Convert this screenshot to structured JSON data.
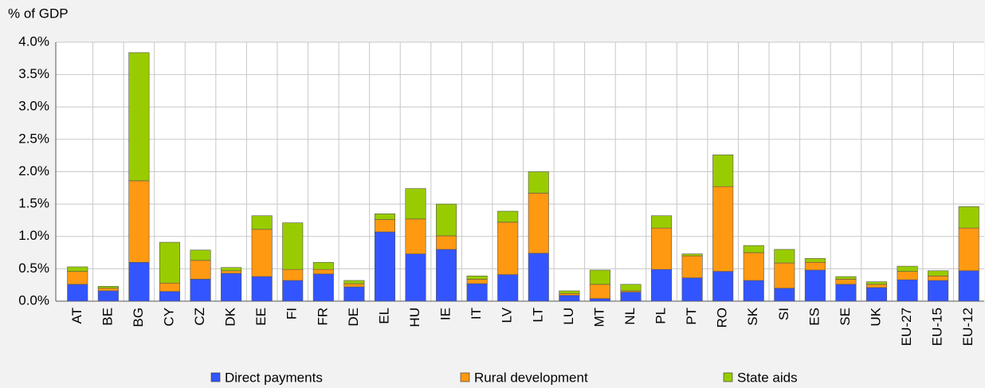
{
  "chart_data": {
    "type": "stacked_bar",
    "y_label": "% of GDP",
    "categories": [
      "AT",
      "BE",
      "BG",
      "CY",
      "CZ",
      "DK",
      "EE",
      "FI",
      "FR",
      "DE",
      "EL",
      "HU",
      "IE",
      "IT",
      "LV",
      "LT",
      "LU",
      "MT",
      "NL",
      "PL",
      "PT",
      "RO",
      "SK",
      "SI",
      "ES",
      "SE",
      "UK",
      "EU-27",
      "EU-15",
      "EU-12"
    ],
    "series": [
      {
        "name": "Direct payments",
        "color": "#3355ff",
        "values": [
          0.26,
          0.16,
          0.6,
          0.15,
          0.34,
          0.43,
          0.38,
          0.32,
          0.42,
          0.22,
          1.07,
          0.73,
          0.8,
          0.27,
          0.41,
          0.74,
          0.09,
          0.04,
          0.14,
          0.49,
          0.36,
          0.46,
          0.32,
          0.2,
          0.48,
          0.26,
          0.21,
          0.33,
          0.32,
          0.47
        ]
      },
      {
        "name": "Rural development",
        "color": "#ff9911",
        "values": [
          0.2,
          0.04,
          1.26,
          0.13,
          0.29,
          0.04,
          0.73,
          0.17,
          0.07,
          0.05,
          0.19,
          0.54,
          0.21,
          0.07,
          0.81,
          0.93,
          0.03,
          0.22,
          0.02,
          0.64,
          0.34,
          1.31,
          0.43,
          0.39,
          0.12,
          0.08,
          0.05,
          0.13,
          0.07,
          0.66
        ]
      },
      {
        "name": "State aids",
        "color": "#99cc00",
        "values": [
          0.07,
          0.03,
          1.98,
          0.63,
          0.16,
          0.05,
          0.21,
          0.72,
          0.11,
          0.05,
          0.09,
          0.47,
          0.49,
          0.05,
          0.17,
          0.33,
          0.04,
          0.22,
          0.1,
          0.19,
          0.03,
          0.49,
          0.11,
          0.21,
          0.06,
          0.04,
          0.04,
          0.08,
          0.08,
          0.33
        ]
      }
    ],
    "ylim": [
      0,
      4
    ],
    "yticks": [
      {
        "value": 0,
        "label": "0.0%"
      },
      {
        "value": 0.5,
        "label": "0.5%"
      },
      {
        "value": 1,
        "label": "1.0%"
      },
      {
        "value": 1.5,
        "label": "1.5%"
      },
      {
        "value": 2,
        "label": "2.0%"
      },
      {
        "value": 2.5,
        "label": "2.5%"
      },
      {
        "value": 3,
        "label": "3.0%"
      },
      {
        "value": 3.5,
        "label": "3.5%"
      },
      {
        "value": 4,
        "label": "4.0%"
      }
    ],
    "grid": true
  }
}
